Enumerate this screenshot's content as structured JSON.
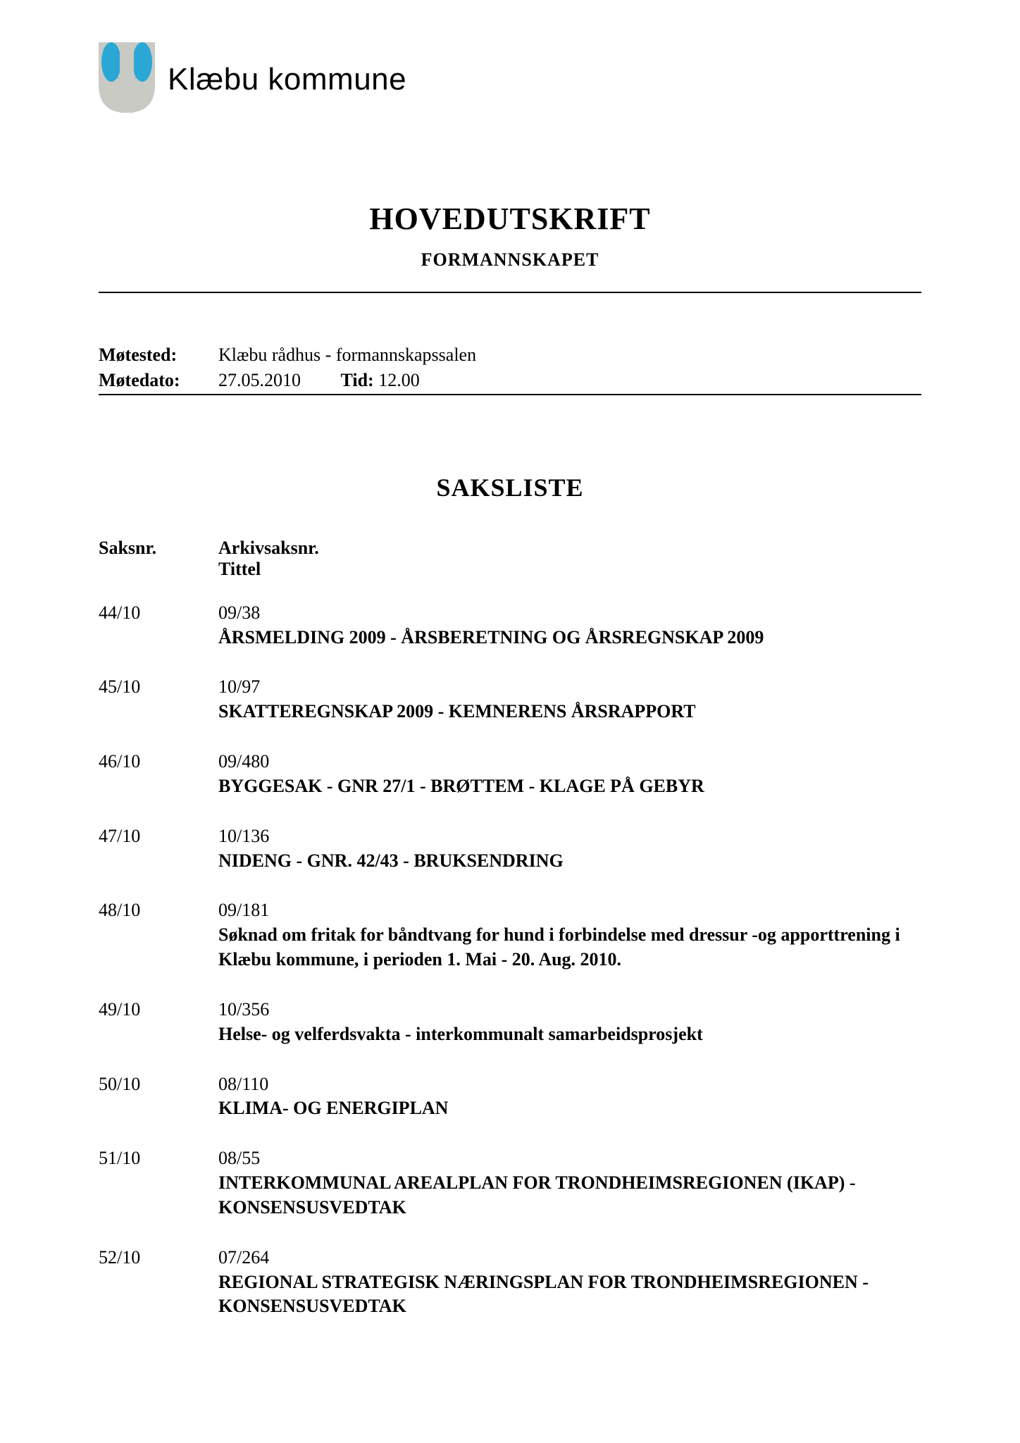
{
  "colors": {
    "text": "#000000",
    "background": "#ffffff",
    "rule": "#000000",
    "logo_blue": "#2ba7d6",
    "logo_gray": "#c9cac4"
  },
  "fonts": {
    "body_family": "Times New Roman",
    "header_family": "Arial",
    "body_size_pt": 26,
    "title_size_pt": 44,
    "section_size_pt": 36
  },
  "header": {
    "org_name": "Klæbu kommune"
  },
  "document": {
    "main_title": "HOVEDUTSKRIFT",
    "sub_title": "FORMANNSKAPET"
  },
  "meeting": {
    "place_label": "Møtested:",
    "place_value": "Klæbu rådhus - formannskapssalen",
    "date_label": "Møtedato:",
    "date_value": "27.05.2010",
    "time_label": "Tid:",
    "time_value": "12.00"
  },
  "saksliste": {
    "heading": "SAKSLISTE",
    "col_saksnr": "Saksnr.",
    "col_arkiv": "Arkivsaksnr.",
    "col_tittel": "Tittel",
    "items": [
      {
        "saksnr": "44/10",
        "arkiv": "09/38",
        "tittel": "ÅRSMELDING 2009 - ÅRSBERETNING OG ÅRSREGNSKAP 2009"
      },
      {
        "saksnr": "45/10",
        "arkiv": "10/97",
        "tittel": "SKATTEREGNSKAP 2009 - KEMNERENS ÅRSRAPPORT"
      },
      {
        "saksnr": "46/10",
        "arkiv": "09/480",
        "tittel": "BYGGESAK - GNR 27/1 - BRØTTEM - KLAGE PÅ GEBYR"
      },
      {
        "saksnr": "47/10",
        "arkiv": "10/136",
        "tittel": "NIDENG - GNR. 42/43 - BRUKSENDRING"
      },
      {
        "saksnr": "48/10",
        "arkiv": "09/181",
        "tittel": "Søknad om fritak for båndtvang for hund i forbindelse med dressur -og apporttrening i Klæbu kommune, i perioden 1. Mai - 20. Aug. 2010."
      },
      {
        "saksnr": "49/10",
        "arkiv": "10/356",
        "tittel": "Helse- og velferdsvakta - interkommunalt samarbeidsprosjekt"
      },
      {
        "saksnr": "50/10",
        "arkiv": "08/110",
        "tittel": "KLIMA- OG ENERGIPLAN"
      },
      {
        "saksnr": "51/10",
        "arkiv": "08/55",
        "tittel": "INTERKOMMUNAL AREALPLAN FOR TRONDHEIMSREGIONEN (IKAP) - KONSENSUSVEDTAK"
      },
      {
        "saksnr": "52/10",
        "arkiv": "07/264",
        "tittel": "REGIONAL STRATEGISK NÆRINGSPLAN FOR TRONDHEIMSREGIONEN - KONSENSUSVEDTAK"
      }
    ]
  }
}
